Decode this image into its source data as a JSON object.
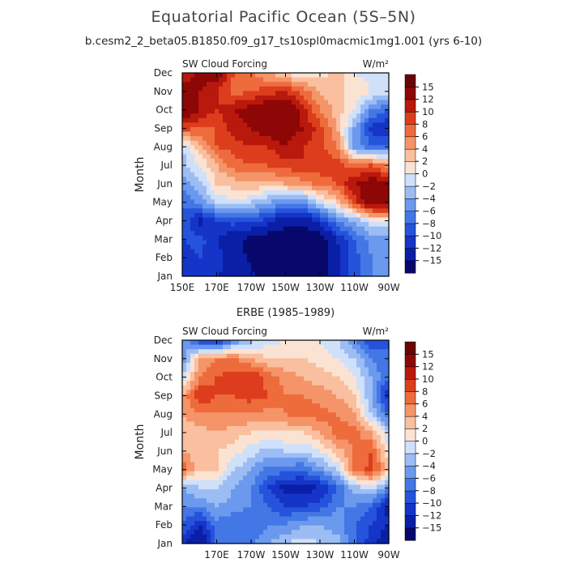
{
  "title": "Equatorial Pacific Ocean (5S–5N)",
  "subtitle": "b.cesm2_2_beta05.B1850.f09_g17_ts10spl0macmic1mg1.001 (yrs 6-10)",
  "chart_data": [
    {
      "type": "heatmap",
      "panel_title": "",
      "left_label": "SW Cloud Forcing",
      "right_label": "W/m²",
      "ylabel": "Month",
      "months": [
        "Jan",
        "Feb",
        "Mar",
        "Apr",
        "May",
        "Jun",
        "Jul",
        "Aug",
        "Sep",
        "Oct",
        "Nov",
        "Dec"
      ],
      "lon_ticks": [
        "150E",
        "170E",
        "170W",
        "150W",
        "130W",
        "110W",
        "90W"
      ],
      "lon_range": [
        150,
        270
      ],
      "contour_levels": [
        -15,
        -12,
        -10,
        -8,
        -6,
        -4,
        -2,
        0,
        2,
        4,
        6,
        8,
        10,
        12,
        15
      ],
      "grid_lons": [
        150,
        160,
        170,
        180,
        190,
        200,
        210,
        220,
        230,
        240,
        250,
        260,
        270
      ],
      "values": [
        [
          -12,
          -11,
          -12,
          -13,
          -14,
          -17,
          -17,
          -16,
          -16,
          -13,
          -9,
          -6,
          -6
        ],
        [
          -12,
          -10,
          -11,
          -13,
          -16,
          -18,
          -18,
          -18,
          -17,
          -13,
          -9,
          -6,
          -6
        ],
        [
          -10,
          -9,
          -12,
          -14,
          -16,
          -17,
          -17,
          -18,
          -17,
          -12,
          -8,
          -5,
          -5
        ],
        [
          -8,
          -13,
          -10,
          -9,
          -9,
          -11,
          -14,
          -14,
          -11,
          -6,
          -4,
          0,
          0
        ],
        [
          -8,
          -5,
          -2,
          0,
          -2,
          -4,
          -5,
          -6,
          -1,
          2,
          9,
          15,
          15
        ],
        [
          -5,
          -3,
          2,
          3,
          4,
          3,
          4,
          5,
          7,
          8,
          12,
          14,
          13
        ],
        [
          -3,
          0,
          4,
          7,
          8,
          8,
          9,
          10,
          9,
          9,
          7,
          8,
          5
        ],
        [
          -2,
          3,
          8,
          9,
          10,
          10,
          12,
          10,
          9,
          6,
          -5,
          -8,
          -7
        ],
        [
          9,
          8,
          8,
          11,
          12,
          14,
          14,
          12,
          9,
          4,
          -4,
          -11,
          -12
        ],
        [
          15,
          12,
          10,
          12,
          13,
          15,
          15,
          11,
          6,
          3,
          0,
          -6,
          -8
        ],
        [
          14,
          12,
          10,
          7,
          8,
          9,
          10,
          7,
          4,
          2,
          2,
          0,
          -1
        ],
        [
          10,
          13,
          14,
          8,
          6,
          4,
          2,
          0,
          1,
          3,
          0,
          -1,
          -2
        ]
      ]
    },
    {
      "type": "heatmap",
      "panel_title": "ERBE (1985–1989)",
      "left_label": "SW Cloud Forcing",
      "right_label": "W/m²",
      "ylabel": "Month",
      "months": [
        "Jan",
        "Feb",
        "Mar",
        "Apr",
        "May",
        "Jun",
        "Jul",
        "Aug",
        "Sep",
        "Oct",
        "Nov",
        "Dec"
      ],
      "lon_ticks": [
        "170E",
        "170W",
        "150W",
        "130W",
        "110W",
        "90W"
      ],
      "lon_range": [
        150,
        270
      ],
      "contour_levels": [
        -15,
        -12,
        -10,
        -8,
        -6,
        -4,
        -2,
        0,
        2,
        4,
        6,
        8,
        10,
        12,
        15
      ],
      "grid_lons": [
        150,
        160,
        170,
        180,
        190,
        200,
        210,
        220,
        230,
        240,
        250,
        260,
        270
      ],
      "values": [
        [
          -11,
          -15,
          -8,
          -6,
          -6,
          -4,
          -2,
          -1,
          -2,
          -3,
          -8,
          -11,
          -15
        ],
        [
          -8,
          -12,
          -7,
          -8,
          -8,
          -6,
          -6,
          -4,
          -4,
          -5,
          -8,
          -10,
          -12
        ],
        [
          -6,
          -6,
          -4,
          -5,
          -6,
          -8,
          -10,
          -10,
          -9,
          -6,
          -6,
          -8,
          -13
        ],
        [
          -4,
          -2,
          -2,
          -4,
          -6,
          -10,
          -13,
          -13,
          -12,
          -8,
          -3,
          -1,
          -6
        ],
        [
          8,
          2,
          2,
          -2,
          -4,
          -7,
          -7,
          -8,
          -5,
          -2,
          6,
          9,
          3
        ],
        [
          4,
          3,
          2,
          1,
          -1,
          -3,
          -2,
          -2,
          0,
          3,
          6,
          8,
          0
        ],
        [
          2,
          3,
          4,
          3,
          2,
          2,
          2,
          2,
          4,
          7,
          7,
          4,
          -2
        ],
        [
          4,
          6,
          6,
          6,
          6,
          5,
          6,
          7,
          7,
          6,
          4,
          -2,
          -8
        ],
        [
          4,
          10,
          8,
          8,
          9,
          8,
          6,
          6,
          5,
          4,
          2,
          -4,
          -12
        ],
        [
          -2,
          6,
          8,
          9,
          10,
          7,
          5,
          4,
          3,
          2,
          0,
          -4,
          -8
        ],
        [
          -6,
          4,
          6,
          6,
          4,
          2,
          2,
          2,
          1,
          0,
          -2,
          -6,
          -8
        ],
        [
          -4,
          -10,
          -12,
          -6,
          -3,
          -1,
          0,
          1,
          0,
          -2,
          -6,
          -10,
          -8
        ]
      ]
    }
  ]
}
